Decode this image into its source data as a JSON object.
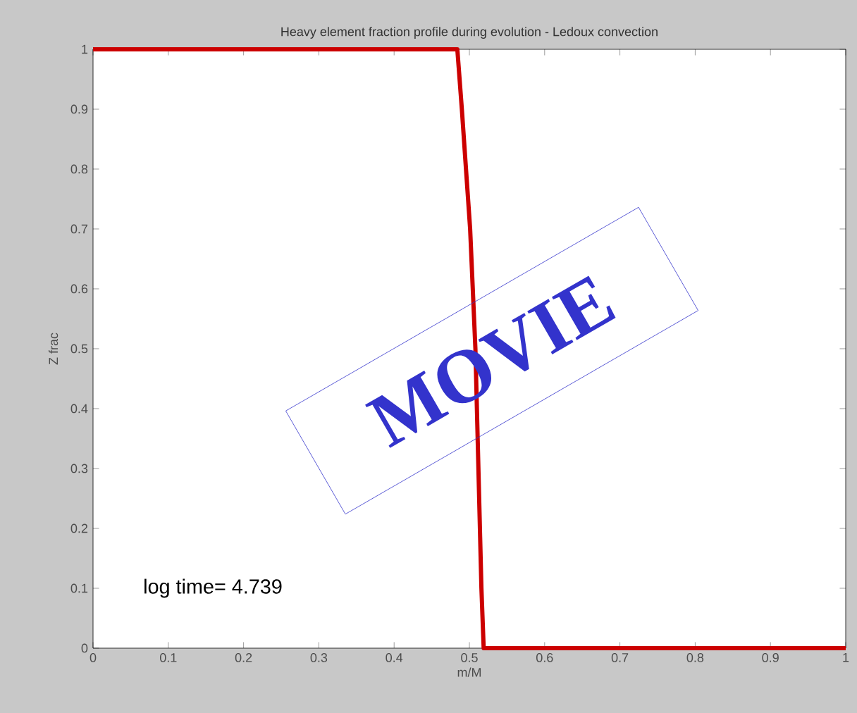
{
  "chart_data": {
    "type": "line",
    "title": "Heavy element fraction profile during evolution - Ledoux convection",
    "xlabel": "m/M",
    "ylabel": "Z frac",
    "x": [
      0,
      0.484,
      0.49,
      0.501,
      0.508,
      0.512,
      0.516,
      0.519,
      1
    ],
    "series": [
      {
        "color": "#cc0000",
        "values": [
          1,
          1,
          0.9,
          0.7,
          0.5,
          0.3,
          0.1,
          0,
          0
        ]
      }
    ],
    "xlim": [
      0,
      1
    ],
    "ylim": [
      0,
      1
    ],
    "xticks": [
      0,
      0.1,
      0.2,
      0.3,
      0.4,
      0.5,
      0.6,
      0.7,
      0.8,
      0.9,
      1
    ],
    "yticks": [
      0,
      0.1,
      0.2,
      0.3,
      0.4,
      0.5,
      0.6,
      0.7,
      0.8,
      0.9,
      1
    ],
    "annotations": [
      "log time= 4.739",
      "MOVIE"
    ],
    "grid": false,
    "marker": "none",
    "line_style": "solid"
  }
}
